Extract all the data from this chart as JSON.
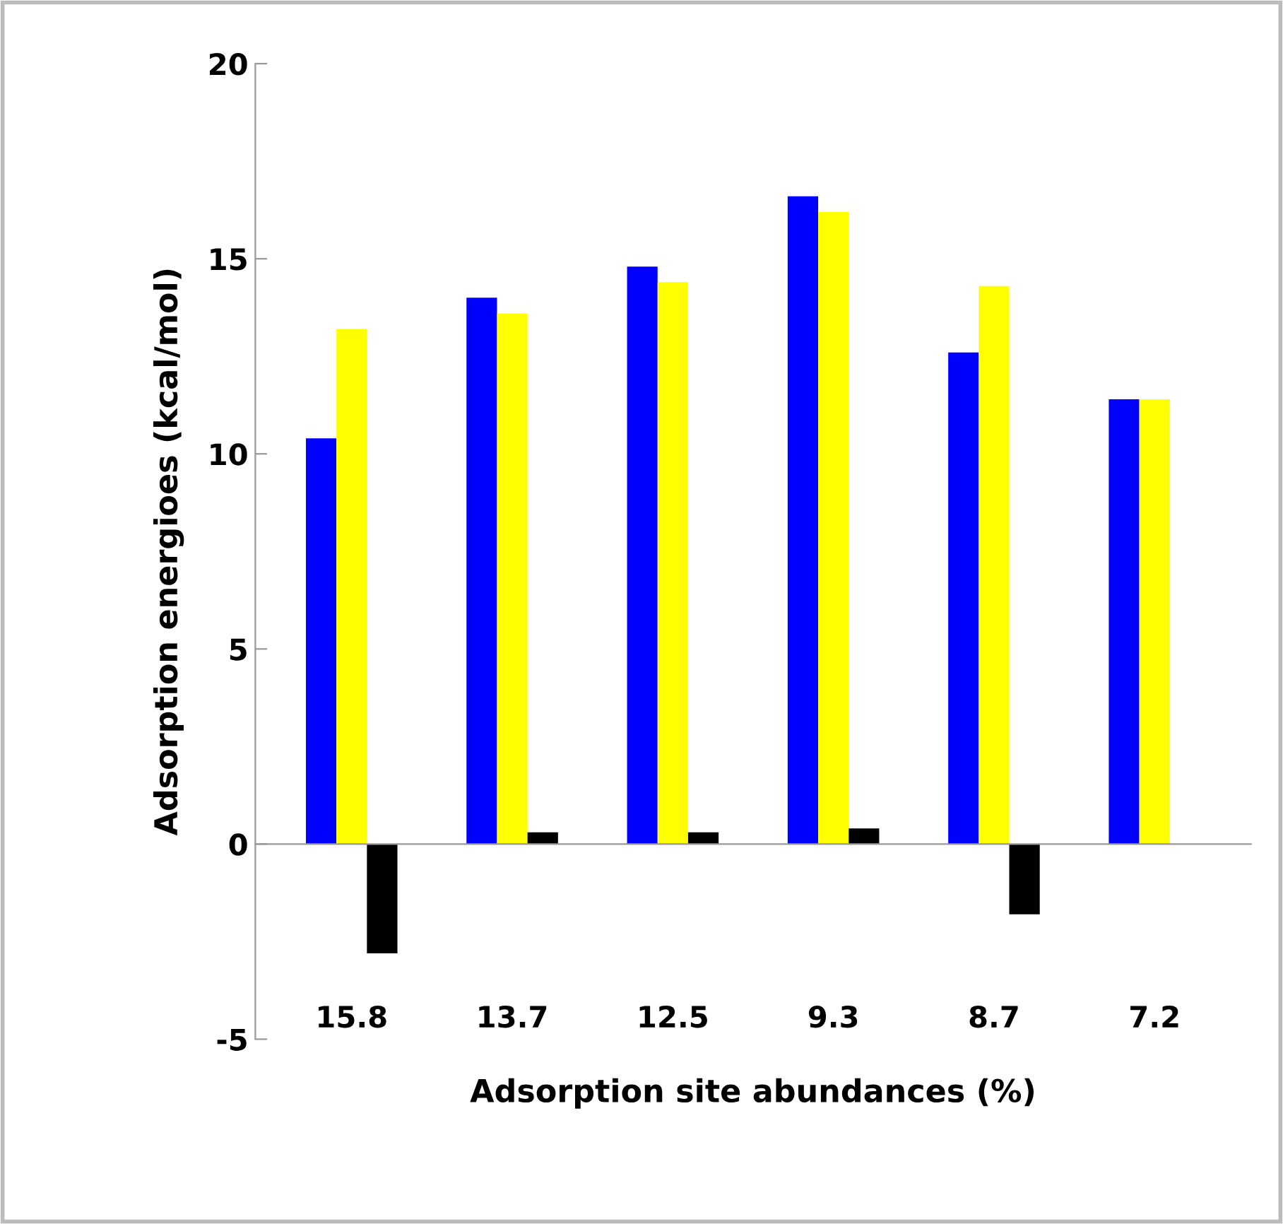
{
  "chart_data": {
    "type": "bar",
    "xlabel": "Adsorption site abundances (%)",
    "ylabel": "Adsorption energioes (kcal/mol)",
    "categories": [
      "15.8",
      "13.7",
      "12.5",
      "9.3",
      "8.7",
      "7.2"
    ],
    "series": [
      {
        "color": "#0000ff",
        "values": [
          10.4,
          14.0,
          14.8,
          16.6,
          12.6,
          11.4
        ]
      },
      {
        "color": "#ffff00",
        "values": [
          13.2,
          13.6,
          14.4,
          16.2,
          14.3,
          11.4
        ]
      },
      {
        "color": "#000000",
        "values": [
          -2.8,
          0.3,
          0.3,
          0.4,
          -1.8,
          null
        ]
      }
    ],
    "ylim": [
      -5,
      20
    ],
    "yticks": [
      -5,
      0,
      5,
      10,
      15,
      20
    ],
    "legend": false
  }
}
